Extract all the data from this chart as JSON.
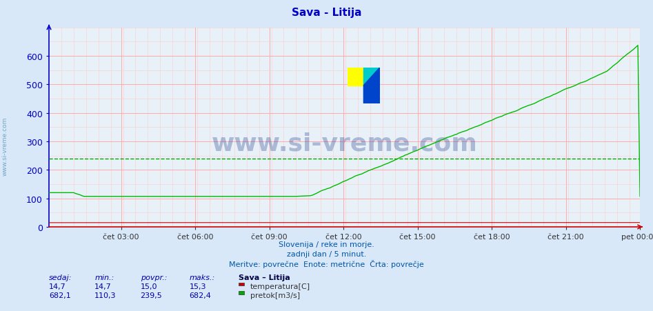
{
  "title": "Sava - Litija",
  "title_color": "#0000cc",
  "background_color": "#d8e8f8",
  "plot_bg_color": "#e8f0f8",
  "grid_color_major": "#ffaaaa",
  "grid_color_minor": "#ffcccc",
  "x_axis_color": "#cc0000",
  "y_axis_color": "#0000cc",
  "watermark_text": "www.si-vreme.com",
  "watermark_color": "#1a3a8a",
  "watermark_alpha": 0.3,
  "x_tick_labels": [
    "čet 03:00",
    "čet 06:00",
    "čet 09:00",
    "čet 12:00",
    "čet 15:00",
    "čet 18:00",
    "čet 21:00",
    "pet 00:00"
  ],
  "x_tick_fracs": [
    0.125,
    0.25,
    0.375,
    0.5,
    0.625,
    0.75,
    0.875,
    1.0
  ],
  "y_ticks": [
    0,
    100,
    200,
    300,
    400,
    500,
    600
  ],
  "ylim": [
    0,
    700
  ],
  "footnote_line1": "Slovenija / reke in morje.",
  "footnote_line2": "zadnji dan / 5 minut.",
  "footnote_line3": "Meritve: povrečne  Enote: metrične  Črta: povrečje",
  "footnote_color": "#0055aa",
  "legend_title": "Sava – Litija",
  "stats_headers": [
    "sedaj:",
    "min.:",
    "povpr.:",
    "maks.:"
  ],
  "stats_temp": [
    "14,7",
    "14,7",
    "15,0",
    "15,3"
  ],
  "stats_flow": [
    "682,1",
    "110,3",
    "239,5",
    "682,4"
  ],
  "stats_color": "#0000aa",
  "avg_line_value": 239.5,
  "avg_line_color": "#00aa00",
  "sidebar_text": "www.si-vreme.com",
  "sidebar_color": "#6699bb",
  "temp_color": "#cc0000",
  "flow_color": "#00bb00",
  "temp_legend_color": "#cc0000",
  "flow_legend_color": "#00aa00",
  "temp_label": "temperatura[C]",
  "flow_label": "pretok[m3/s]",
  "n_points": 288
}
